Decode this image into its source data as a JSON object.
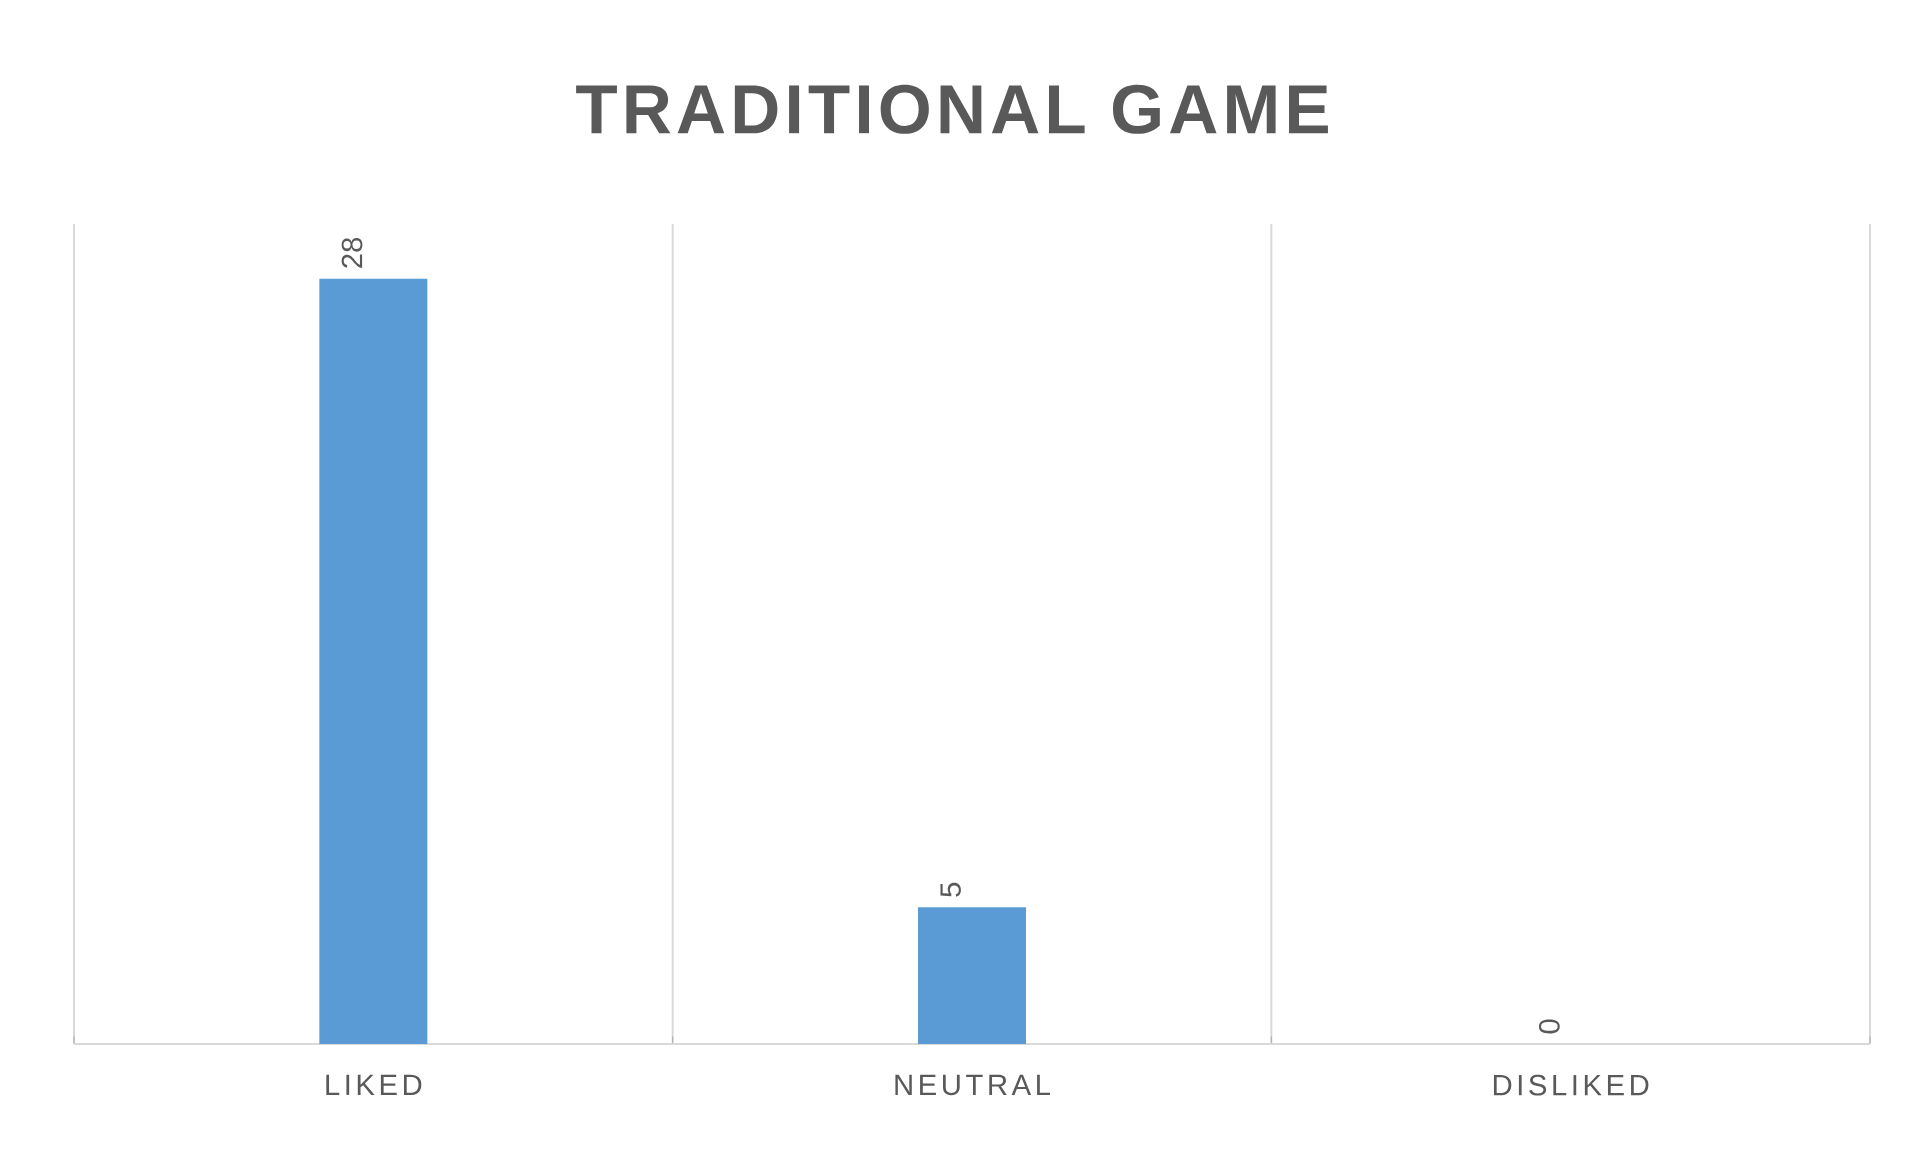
{
  "chart_data": {
    "type": "bar",
    "title": "TRADITIONAL  GAME",
    "categories": [
      "LIKED",
      "NEUTRAL",
      "DISLIKED"
    ],
    "values": [
      28,
      5,
      0
    ],
    "color": "#5b9bd5",
    "ylim": [
      0,
      30
    ],
    "grid": "x",
    "data_labels": true,
    "tick_labels": "x"
  }
}
